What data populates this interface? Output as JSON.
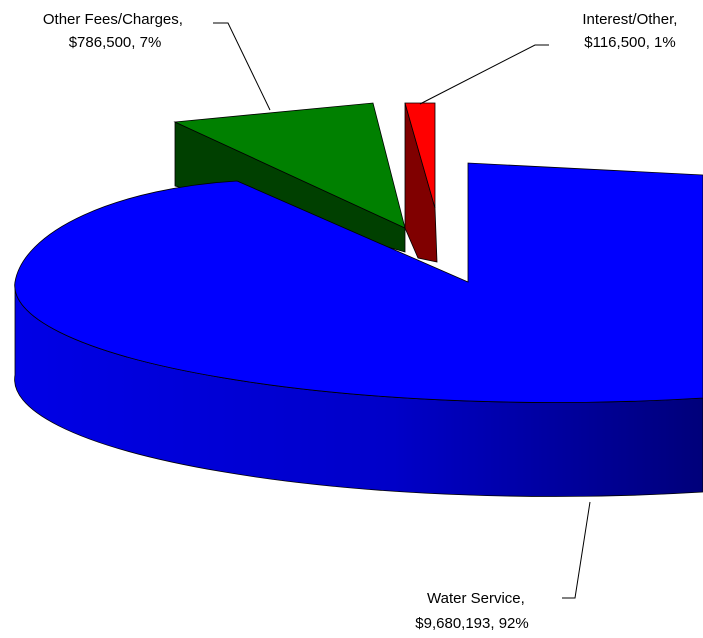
{
  "chart_data": {
    "type": "pie",
    "style": "3d-exploded",
    "title": "",
    "slices": [
      {
        "name": "Water Service",
        "value": 9680193,
        "value_text": "$9,680,193",
        "percent_text": "92%",
        "color": "#0000ff"
      },
      {
        "name": "Other Fees/Charges",
        "value": 786500,
        "value_text": "$786,500",
        "percent_text": "7%",
        "color": "#008000"
      },
      {
        "name": "Interest/Other",
        "value": 116500,
        "value_text": "$116,500",
        "percent_text": "1%",
        "color": "#ff0000"
      }
    ],
    "labels": [
      {
        "line1": "Water Service,",
        "line2": "$9,680,193, 92%"
      },
      {
        "line1": "Other Fees/Charges,",
        "line2": "$786,500, 7%"
      },
      {
        "line1": "Interest/Other,",
        "line2": "$116,500, 1%"
      }
    ]
  }
}
